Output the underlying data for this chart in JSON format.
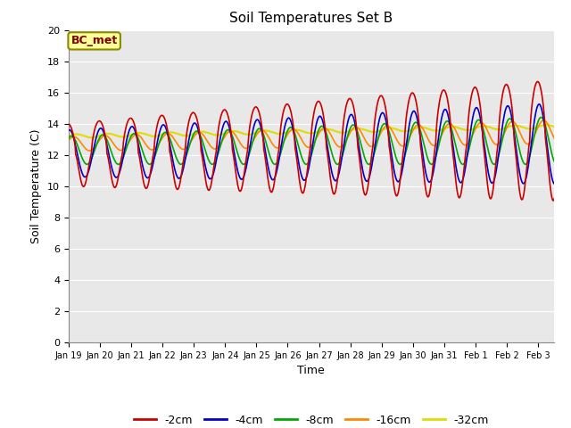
{
  "title": "Soil Temperatures Set B",
  "xlabel": "Time",
  "ylabel": "Soil Temperature (C)",
  "ylim": [
    0,
    20
  ],
  "yticks": [
    0,
    2,
    4,
    6,
    8,
    10,
    12,
    14,
    16,
    18,
    20
  ],
  "colors": {
    "-2cm": "#cc0000",
    "-4cm": "#0000cc",
    "-8cm": "#00aa00",
    "-16cm": "#ff8800",
    "-32cm": "#dddd00"
  },
  "legend_labels": [
    "-2cm",
    "-4cm",
    "-8cm",
    "-16cm",
    "-32cm"
  ],
  "annotation_text": "BC_met",
  "x_tick_labels": [
    "Jan 19",
    "Jan 20",
    "Jan 21",
    "Jan 22",
    "Jan 23",
    "Jan 24",
    "Jan 25",
    "Jan 26",
    "Jan 27",
    "Jan 28",
    "Jan 29",
    "Jan 30",
    "Jan 31",
    "Feb 1",
    "Feb 2",
    "Feb 3"
  ],
  "bg_color": "#d8d8d8",
  "plot_bg": "#e8e8e8",
  "grid_color": "#ffffff"
}
